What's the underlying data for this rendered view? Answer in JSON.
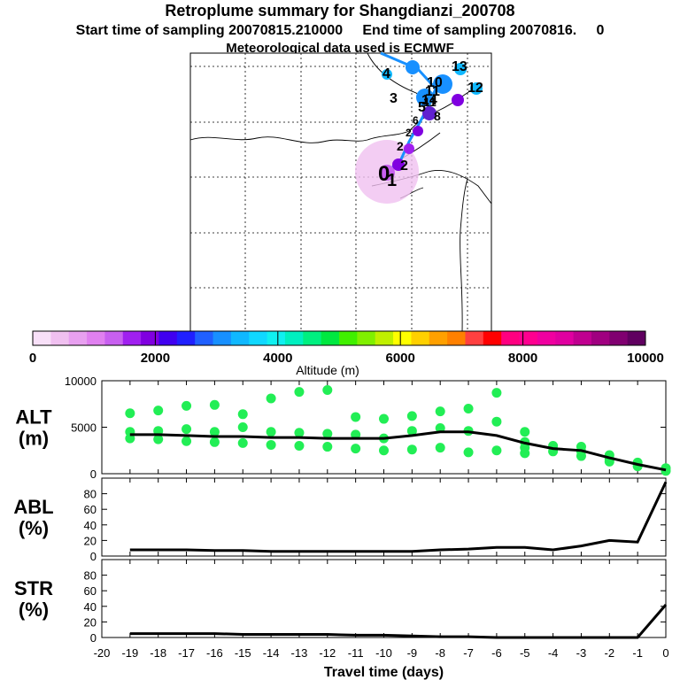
{
  "header": {
    "title": "Retroplume summary for Shangdianzi_200708",
    "subtitle": "Start time of sampling 20070815.210000     End time of sampling 20070816.     0",
    "met_note": "Meteorological data used is ECMWF"
  },
  "colors": {
    "altitude_scale": [
      "#f8e0f8",
      "#f0c0f0",
      "#e8a0f0",
      "#e080f0",
      "#c860f0",
      "#a020f0",
      "#8000e0",
      "#4000f0",
      "#2020ff",
      "#2060ff",
      "#1890ff",
      "#10b8ff",
      "#10d8ff",
      "#10f0f0",
      "#00f0c0",
      "#00f080",
      "#00e840",
      "#40f000",
      "#80f000",
      "#c0f000",
      "#ffff00",
      "#ffd000",
      "#ffa000",
      "#ff8000",
      "#ff4040",
      "#ff0000",
      "#ff0080",
      "#ff0090",
      "#f000a0",
      "#e000a0",
      "#c00090",
      "#a00080",
      "#800070",
      "#600060"
    ],
    "scatter": "#22ee55",
    "line": "#000000"
  },
  "map": {
    "labels": [
      "0",
      "1",
      "2",
      "3",
      "4",
      "5",
      "6",
      "7",
      "8",
      "9",
      "10",
      "11",
      "12",
      "13",
      "14",
      "15"
    ]
  },
  "colorbar": {
    "ticks": [
      "0",
      "2000",
      "4000",
      "6000",
      "8000",
      "10000"
    ],
    "label": "Altitude (m)"
  },
  "chart_data": [
    {
      "type": "scatter",
      "name": "ALT",
      "ylabel": [
        "ALT",
        "(m)"
      ],
      "ylim": [
        0,
        10000
      ],
      "yticks": [
        "0",
        "5000",
        "10000"
      ],
      "xlim": [
        -20,
        0
      ],
      "mean_line": {
        "x": [
          -19,
          -18,
          -17,
          -16,
          -15,
          -14,
          -13,
          -12,
          -11,
          -10,
          -9,
          -8,
          -7,
          -6,
          -5,
          -4,
          -3,
          -2,
          -1,
          0
        ],
        "y": [
          4200,
          4200,
          4100,
          4000,
          4000,
          3900,
          3900,
          3800,
          3800,
          3800,
          4100,
          4500,
          4500,
          4100,
          3300,
          2700,
          2500,
          1700,
          1000,
          400
        ]
      },
      "points": [
        {
          "x": -19,
          "y": 6500
        },
        {
          "x": -19,
          "y": 4500
        },
        {
          "x": -19,
          "y": 3800
        },
        {
          "x": -18,
          "y": 6800
        },
        {
          "x": -18,
          "y": 4600
        },
        {
          "x": -18,
          "y": 3700
        },
        {
          "x": -17,
          "y": 7300
        },
        {
          "x": -17,
          "y": 4800
        },
        {
          "x": -17,
          "y": 3500
        },
        {
          "x": -16,
          "y": 7400
        },
        {
          "x": -16,
          "y": 4500
        },
        {
          "x": -16,
          "y": 3400
        },
        {
          "x": -15,
          "y": 6400
        },
        {
          "x": -15,
          "y": 5000
        },
        {
          "x": -15,
          "y": 3300
        },
        {
          "x": -14,
          "y": 8100
        },
        {
          "x": -14,
          "y": 4500
        },
        {
          "x": -14,
          "y": 3100
        },
        {
          "x": -13,
          "y": 8800
        },
        {
          "x": -13,
          "y": 4400
        },
        {
          "x": -13,
          "y": 3000
        },
        {
          "x": -12,
          "y": 9000
        },
        {
          "x": -12,
          "y": 4300
        },
        {
          "x": -12,
          "y": 2900
        },
        {
          "x": -11,
          "y": 6100
        },
        {
          "x": -11,
          "y": 4200
        },
        {
          "x": -11,
          "y": 2700
        },
        {
          "x": -10,
          "y": 5900
        },
        {
          "x": -10,
          "y": 3800
        },
        {
          "x": -10,
          "y": 2500
        },
        {
          "x": -9,
          "y": 6200
        },
        {
          "x": -9,
          "y": 4600
        },
        {
          "x": -9,
          "y": 2600
        },
        {
          "x": -8,
          "y": 6700
        },
        {
          "x": -8,
          "y": 4900
        },
        {
          "x": -8,
          "y": 2800
        },
        {
          "x": -7,
          "y": 7000
        },
        {
          "x": -7,
          "y": 4600
        },
        {
          "x": -7,
          "y": 2300
        },
        {
          "x": -6,
          "y": 8700
        },
        {
          "x": -6,
          "y": 5600
        },
        {
          "x": -6,
          "y": 2500
        },
        {
          "x": -5,
          "y": 4500
        },
        {
          "x": -5,
          "y": 3400
        },
        {
          "x": -5,
          "y": 2800
        },
        {
          "x": -5,
          "y": 2200
        },
        {
          "x": -4,
          "y": 3000
        },
        {
          "x": -4,
          "y": 2400
        },
        {
          "x": -3,
          "y": 2900
        },
        {
          "x": -3,
          "y": 2400
        },
        {
          "x": -3,
          "y": 1900
        },
        {
          "x": -2,
          "y": 2000
        },
        {
          "x": -2,
          "y": 1600
        },
        {
          "x": -2,
          "y": 1300
        },
        {
          "x": -1,
          "y": 1200
        },
        {
          "x": -1,
          "y": 800
        },
        {
          "x": 0,
          "y": 600
        },
        {
          "x": 0,
          "y": 300
        }
      ]
    },
    {
      "type": "line",
      "name": "ABL",
      "ylabel": [
        "ABL",
        "(%)"
      ],
      "ylim": [
        0,
        100
      ],
      "yticks": [
        "0",
        "20",
        "40",
        "60",
        "80"
      ],
      "xlim": [
        -20,
        0
      ],
      "x": [
        -19,
        -18,
        -17,
        -16,
        -15,
        -14,
        -13,
        -12,
        -11,
        -10,
        -9,
        -8,
        -7,
        -6,
        -5,
        -4,
        -3,
        -2,
        -1,
        0
      ],
      "y": [
        8,
        8,
        8,
        7,
        7,
        6,
        6,
        6,
        6,
        6,
        6,
        8,
        9,
        11,
        11,
        8,
        13,
        20,
        18,
        95
      ]
    },
    {
      "type": "line",
      "name": "STR",
      "ylabel": [
        "STR",
        "(%)"
      ],
      "ylim": [
        0,
        100
      ],
      "yticks": [
        "0",
        "20",
        "40",
        "60",
        "80"
      ],
      "xlim": [
        -20,
        0
      ],
      "x": [
        -19,
        -18,
        -17,
        -16,
        -15,
        -14,
        -13,
        -12,
        -11,
        -10,
        -9,
        -8,
        -7,
        -6,
        -5,
        -4,
        -3,
        -2,
        -1,
        0
      ],
      "y": [
        5,
        5,
        5,
        5,
        4,
        4,
        4,
        4,
        3,
        3,
        2,
        1,
        1,
        0,
        0,
        0,
        0,
        0,
        0,
        42
      ],
      "xticks": [
        "-20",
        "-19",
        "-18",
        "-17",
        "-16",
        "-15",
        "-14",
        "-13",
        "-12",
        "-11",
        "-10",
        "-9",
        "-8",
        "-7",
        "-6",
        "-5",
        "-4",
        "-3",
        "-2",
        "-1",
        "0"
      ],
      "xlabel": "Travel time (days)"
    }
  ]
}
